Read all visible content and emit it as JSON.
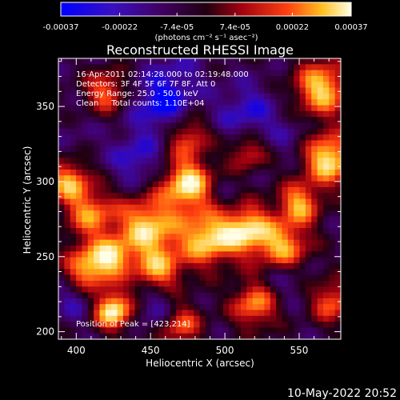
{
  "chart_data": {
    "type": "heatmap",
    "title": "Reconstructed RHESSI Image",
    "xlabel": "Heliocentric X (arcsec)",
    "ylabel": "Heliocentric Y (arcsec)",
    "xlim": [
      388,
      578
    ],
    "ylim": [
      195,
      382
    ],
    "x_ticks": [
      "400",
      "450",
      "500",
      "550"
    ],
    "y_ticks": [
      "200",
      "250",
      "300",
      "350"
    ],
    "colorbar": {
      "ticks": [
        "-0.00037",
        "-0.00022",
        "-7.4e-05",
        "7.4e-05",
        "0.00022",
        "0.00037"
      ],
      "unit_label": "(photons cm⁻² s⁻¹ asec⁻²)",
      "range": [
        -0.00037,
        0.00037
      ]
    },
    "annotations": [
      "16-Apr-2011 02:14:28.000 to 02:19:48.000",
      "Detectors: 3F 4F 5F 6F 7F 8F, Att 0",
      "Energy Range: 25.0 - 50.0 keV",
      "Clean     Total counts: 1.10E+04"
    ],
    "peak_text": "Position of Peak = [423,214]",
    "peak": {
      "x": 423,
      "y": 214
    },
    "colormap": [
      "#0000ff",
      "#3b0ab0",
      "#400060",
      "#200010",
      "#a00010",
      "#ff4010",
      "#ffc020",
      "#ffffe8"
    ],
    "blobs": [
      {
        "x": 425,
        "y": 214,
        "value": 0.00037,
        "spread": 9
      },
      {
        "x": 408,
        "y": 242,
        "value": 0.00028,
        "spread": 11
      },
      {
        "x": 395,
        "y": 300,
        "value": 0.00024,
        "spread": 10
      },
      {
        "x": 410,
        "y": 278,
        "value": 0.0002,
        "spread": 12
      },
      {
        "x": 448,
        "y": 270,
        "value": 0.0003,
        "spread": 14
      },
      {
        "x": 475,
        "y": 298,
        "value": 0.00034,
        "spread": 12
      },
      {
        "x": 488,
        "y": 262,
        "value": 0.0003,
        "spread": 13
      },
      {
        "x": 455,
        "y": 240,
        "value": 0.00022,
        "spread": 12
      },
      {
        "x": 515,
        "y": 268,
        "value": 0.0003,
        "spread": 12
      },
      {
        "x": 540,
        "y": 255,
        "value": 0.00026,
        "spread": 12
      },
      {
        "x": 570,
        "y": 315,
        "value": 0.00034,
        "spread": 12
      },
      {
        "x": 565,
        "y": 362,
        "value": 0.0003,
        "spread": 13
      },
      {
        "x": 550,
        "y": 285,
        "value": 0.00024,
        "spread": 10
      },
      {
        "x": 520,
        "y": 218,
        "value": 0.00022,
        "spread": 11
      },
      {
        "x": 470,
        "y": 205,
        "value": 0.00018,
        "spread": 10
      },
      {
        "x": 572,
        "y": 220,
        "value": 0.00018,
        "spread": 10
      },
      {
        "x": 420,
        "y": 360,
        "value": 0.00018,
        "spread": 10
      },
      {
        "x": 475,
        "y": 330,
        "value": 0.00016,
        "spread": 10
      },
      {
        "x": 515,
        "y": 320,
        "value": 0.00014,
        "spread": 9
      },
      {
        "x": 425,
        "y": 250,
        "value": 0.0002,
        "spread": 9
      }
    ],
    "cool_spots": [
      {
        "x": 458,
        "y": 352,
        "value": -0.00037,
        "spread": 14
      },
      {
        "x": 440,
        "y": 315,
        "value": -0.0003,
        "spread": 12
      },
      {
        "x": 515,
        "y": 345,
        "value": -0.0003,
        "spread": 14
      },
      {
        "x": 400,
        "y": 222,
        "value": -0.00026,
        "spread": 10
      },
      {
        "x": 455,
        "y": 218,
        "value": -0.0003,
        "spread": 11
      },
      {
        "x": 540,
        "y": 238,
        "value": -0.00026,
        "spread": 11
      },
      {
        "x": 500,
        "y": 288,
        "value": -0.00018,
        "spread": 10
      },
      {
        "x": 545,
        "y": 330,
        "value": -0.0002,
        "spread": 10
      },
      {
        "x": 470,
        "y": 375,
        "value": -0.0002,
        "spread": 12
      },
      {
        "x": 400,
        "y": 330,
        "value": -0.00016,
        "spread": 10
      }
    ],
    "footer_date": "10-May-2022 20:52"
  }
}
